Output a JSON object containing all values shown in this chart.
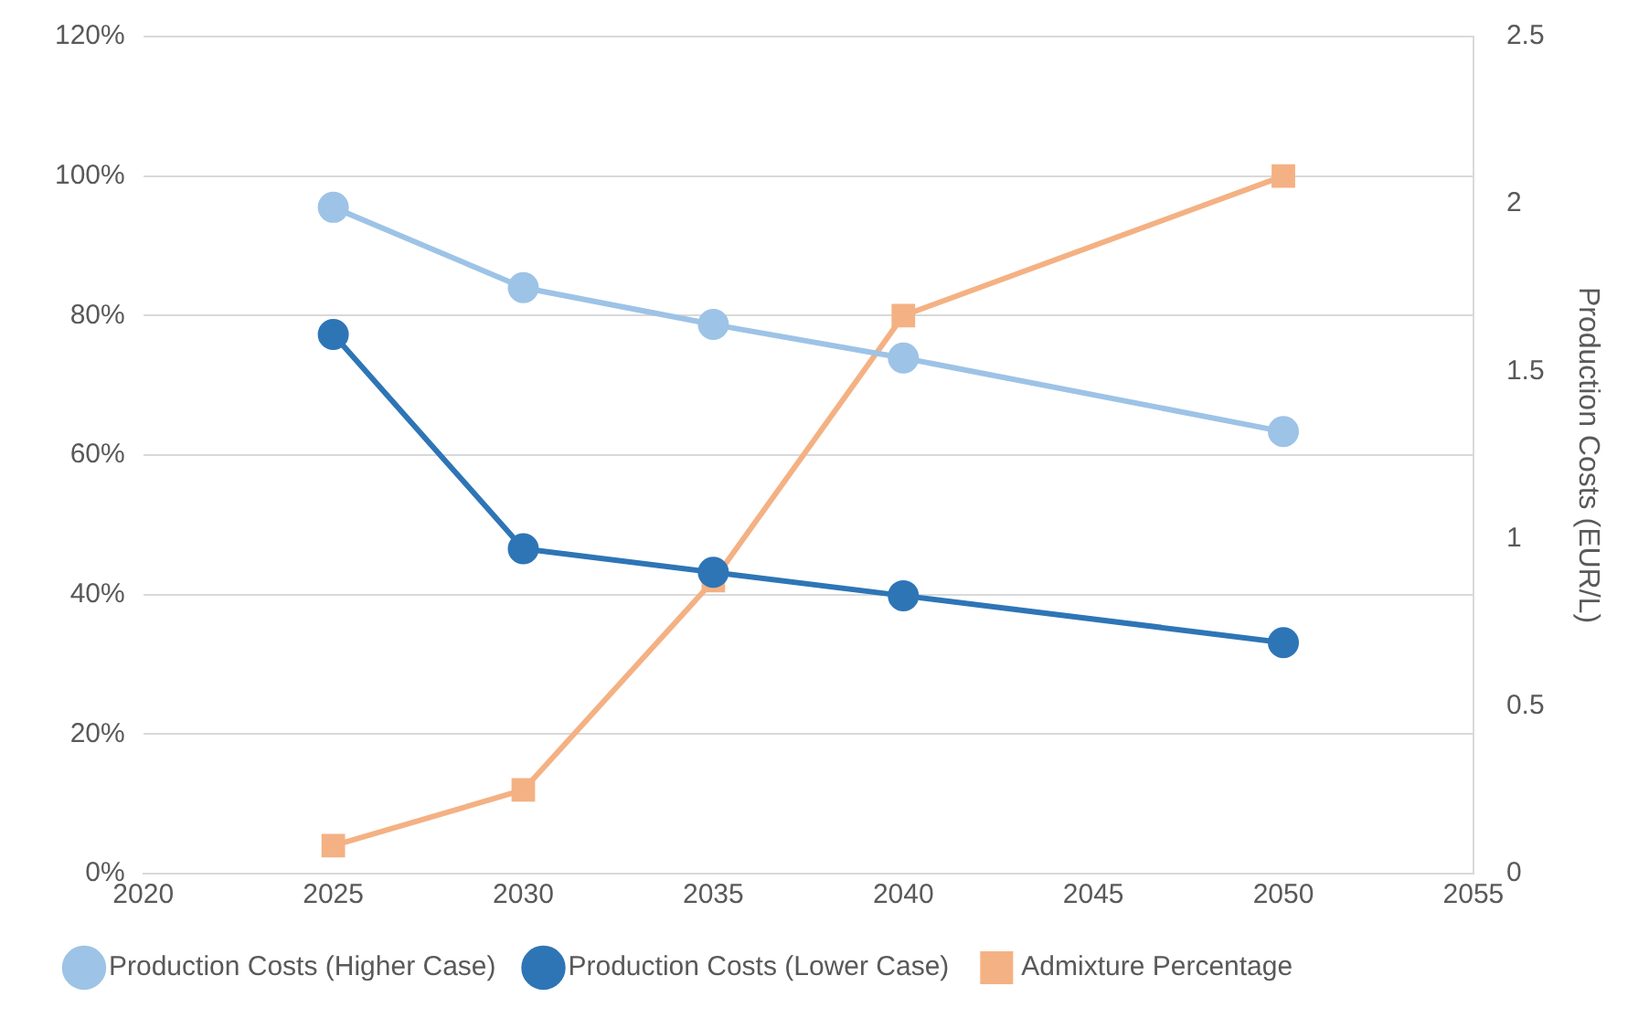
{
  "chart_data": {
    "type": "line",
    "ylabel": null,
    "y2label": "Production Costs (EUR/L)",
    "x": [
      2025,
      2030,
      2035,
      2040,
      2050
    ],
    "xlim": [
      2020,
      2055
    ],
    "xticks": [
      2020,
      2025,
      2030,
      2035,
      2040,
      2045,
      2050,
      2055
    ],
    "ylim": [
      0,
      120
    ],
    "yticks": [
      {
        "value": 0,
        "label": "0%"
      },
      {
        "value": 20,
        "label": "20%"
      },
      {
        "value": 40,
        "label": "40%"
      },
      {
        "value": 60,
        "label": "60%"
      },
      {
        "value": 80,
        "label": "80%"
      },
      {
        "value": 100,
        "label": "100%"
      },
      {
        "value": 120,
        "label": "120%"
      }
    ],
    "y2lim": [
      0,
      2.5
    ],
    "y2ticks": [
      0,
      0.5,
      1,
      1.5,
      2,
      2.5
    ],
    "series": [
      {
        "name": "Admixture Percentage",
        "color": "#f4b183",
        "marker": "square",
        "values": [
          4,
          12,
          42,
          80,
          100
        ]
      },
      {
        "name": "Production Costs (Lower Case)",
        "color": "#2e75b6",
        "marker": "circle",
        "axis": "y2",
        "values": [
          1.61,
          0.97,
          0.9,
          0.83,
          0.69
        ]
      },
      {
        "name": "Production Costs (Higher Case)",
        "color": "#9dc3e6",
        "marker": "circle",
        "axis": "y2",
        "values": [
          1.99,
          1.75,
          1.64,
          1.54,
          1.32
        ]
      }
    ],
    "grid": "y",
    "legend": "bottom"
  }
}
